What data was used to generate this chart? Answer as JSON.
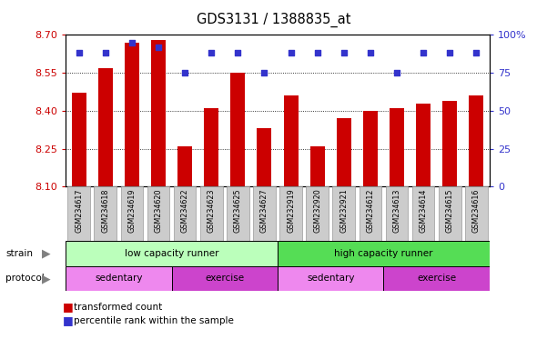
{
  "title": "GDS3131 / 1388835_at",
  "samples": [
    "GSM234617",
    "GSM234618",
    "GSM234619",
    "GSM234620",
    "GSM234622",
    "GSM234623",
    "GSM234625",
    "GSM234627",
    "GSM232919",
    "GSM232920",
    "GSM232921",
    "GSM234612",
    "GSM234613",
    "GSM234614",
    "GSM234615",
    "GSM234616"
  ],
  "bar_values": [
    8.47,
    8.57,
    8.67,
    8.68,
    8.26,
    8.41,
    8.55,
    8.33,
    8.46,
    8.26,
    8.37,
    8.4,
    8.41,
    8.43,
    8.44,
    8.46
  ],
  "percentile_values": [
    88,
    88,
    95,
    92,
    75,
    88,
    88,
    75,
    88,
    88,
    88,
    88,
    75,
    88,
    88,
    88
  ],
  "ymin": 8.1,
  "ymax": 8.7,
  "yticks": [
    8.1,
    8.25,
    8.4,
    8.55,
    8.7
  ],
  "right_yticks": [
    0,
    25,
    50,
    75,
    100
  ],
  "right_yticklabels": [
    "0",
    "25",
    "50",
    "75",
    "100%"
  ],
  "bar_color": "#cc0000",
  "dot_color": "#3333cc",
  "bar_bottom": 8.1,
  "strain_groups": [
    {
      "label": "low capacity runner",
      "start": 0,
      "end": 8,
      "color": "#bbffbb"
    },
    {
      "label": "high capacity runner",
      "start": 8,
      "end": 16,
      "color": "#55dd55"
    }
  ],
  "protocol_groups": [
    {
      "label": "sedentary",
      "start": 0,
      "end": 4,
      "color": "#ee88ee"
    },
    {
      "label": "exercise",
      "start": 4,
      "end": 8,
      "color": "#cc44cc"
    },
    {
      "label": "sedentary",
      "start": 8,
      "end": 12,
      "color": "#ee88ee"
    },
    {
      "label": "exercise",
      "start": 12,
      "end": 16,
      "color": "#cc44cc"
    }
  ],
  "legend_items": [
    {
      "label": "transformed count",
      "color": "#cc0000"
    },
    {
      "label": "percentile rank within the sample",
      "color": "#3333cc"
    }
  ],
  "axis_label_color_left": "#cc0000",
  "axis_label_color_right": "#3333cc",
  "background_color": "#ffffff",
  "plot_bg_color": "#ffffff",
  "tick_label_bg": "#cccccc",
  "tick_label_border": "#999999"
}
